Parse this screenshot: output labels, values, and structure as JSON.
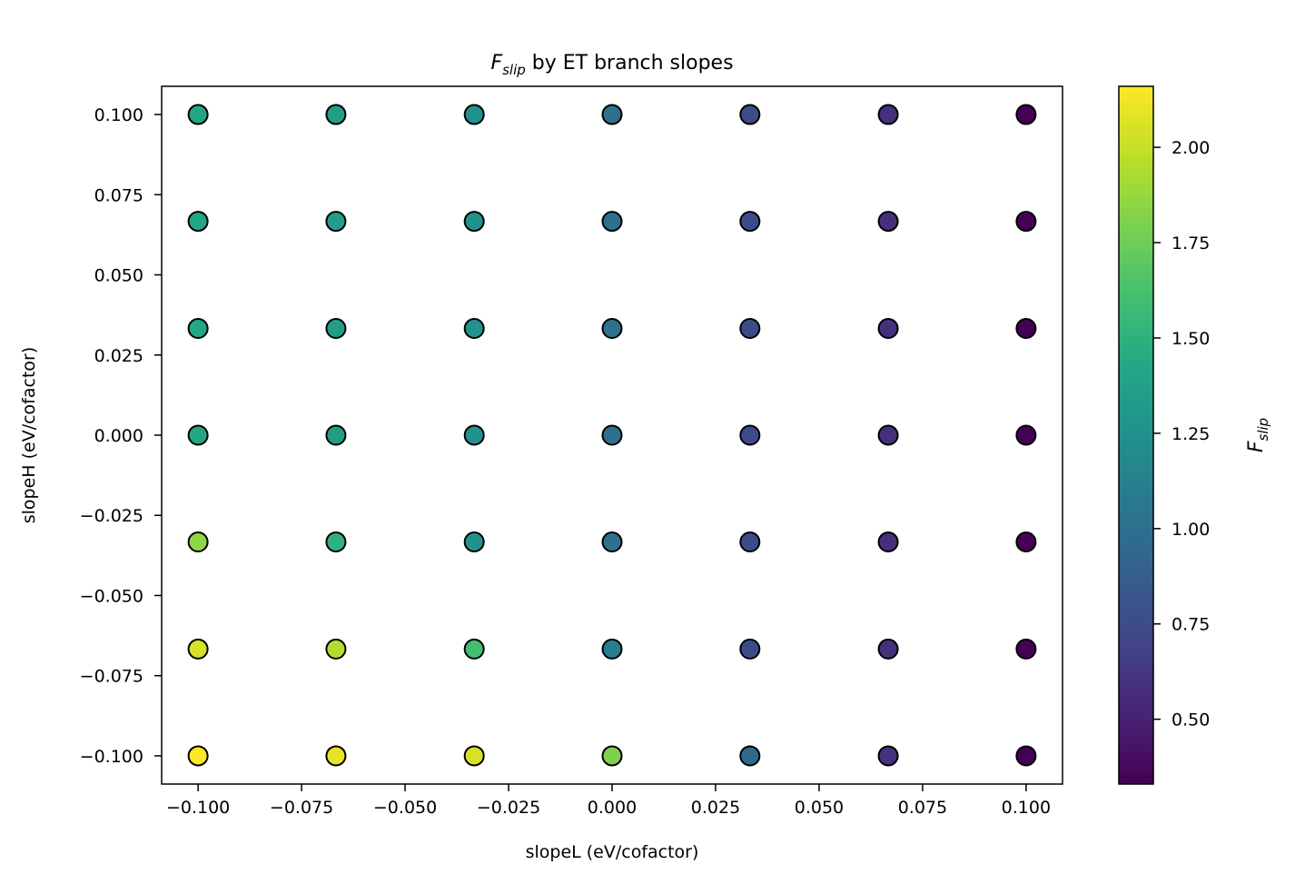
{
  "chart_data": {
    "type": "scatter",
    "title": "F_slip by ET branch slopes",
    "title_parts": {
      "symbol": "F",
      "subscript": "slip",
      "rest": " by ET branch slopes"
    },
    "xlabel": "slopeL (eV/cofactor)",
    "ylabel": "slopeH (eV/cofactor)",
    "colorbar_label": {
      "symbol": "F",
      "subscript": "slip"
    },
    "xlim": [
      -0.1088,
      0.1088
    ],
    "ylim": [
      -0.1088,
      0.1088
    ],
    "xticks": [
      -0.1,
      -0.075,
      -0.05,
      -0.025,
      0.0,
      0.025,
      0.05,
      0.075,
      0.1
    ],
    "xtick_labels": [
      "−0.100",
      "−0.075",
      "−0.050",
      "−0.025",
      "0.000",
      "0.025",
      "0.050",
      "0.075",
      "0.100"
    ],
    "yticks": [
      -0.1,
      -0.075,
      -0.05,
      -0.025,
      0.0,
      0.025,
      0.05,
      0.075,
      0.1
    ],
    "ytick_labels": [
      "−0.100",
      "−0.075",
      "−0.050",
      "−0.025",
      "0.000",
      "0.025",
      "0.050",
      "0.075",
      "0.100"
    ],
    "grid": false,
    "colormap": "viridis",
    "clim": [
      0.33,
      2.16
    ],
    "colorbar_ticks": [
      0.5,
      0.75,
      1.0,
      1.25,
      1.5,
      1.75,
      2.0
    ],
    "colorbar_tick_labels": [
      "0.50",
      "0.75",
      "1.00",
      "1.25",
      "1.50",
      "1.75",
      "2.00"
    ],
    "x_values": [
      -0.1,
      -0.0667,
      -0.0333,
      0.0,
      0.0333,
      0.0667,
      0.1
    ],
    "y_values": [
      0.1,
      0.0667,
      0.0333,
      0.0,
      -0.0333,
      -0.0667,
      -0.1
    ],
    "color_values": [
      [
        1.42,
        1.35,
        1.25,
        1.0,
        0.75,
        0.58,
        0.33
      ],
      [
        1.42,
        1.35,
        1.25,
        1.0,
        0.75,
        0.58,
        0.33
      ],
      [
        1.42,
        1.35,
        1.25,
        1.0,
        0.75,
        0.58,
        0.33
      ],
      [
        1.42,
        1.35,
        1.25,
        1.0,
        0.75,
        0.58,
        0.33
      ],
      [
        1.85,
        1.5,
        1.25,
        1.0,
        0.75,
        0.58,
        0.33
      ],
      [
        2.05,
        1.95,
        1.6,
        1.1,
        0.75,
        0.58,
        0.33
      ],
      [
        2.16,
        2.1,
        2.05,
        1.8,
        0.95,
        0.6,
        0.33
      ]
    ],
    "marker_edge_color": "#000000"
  }
}
